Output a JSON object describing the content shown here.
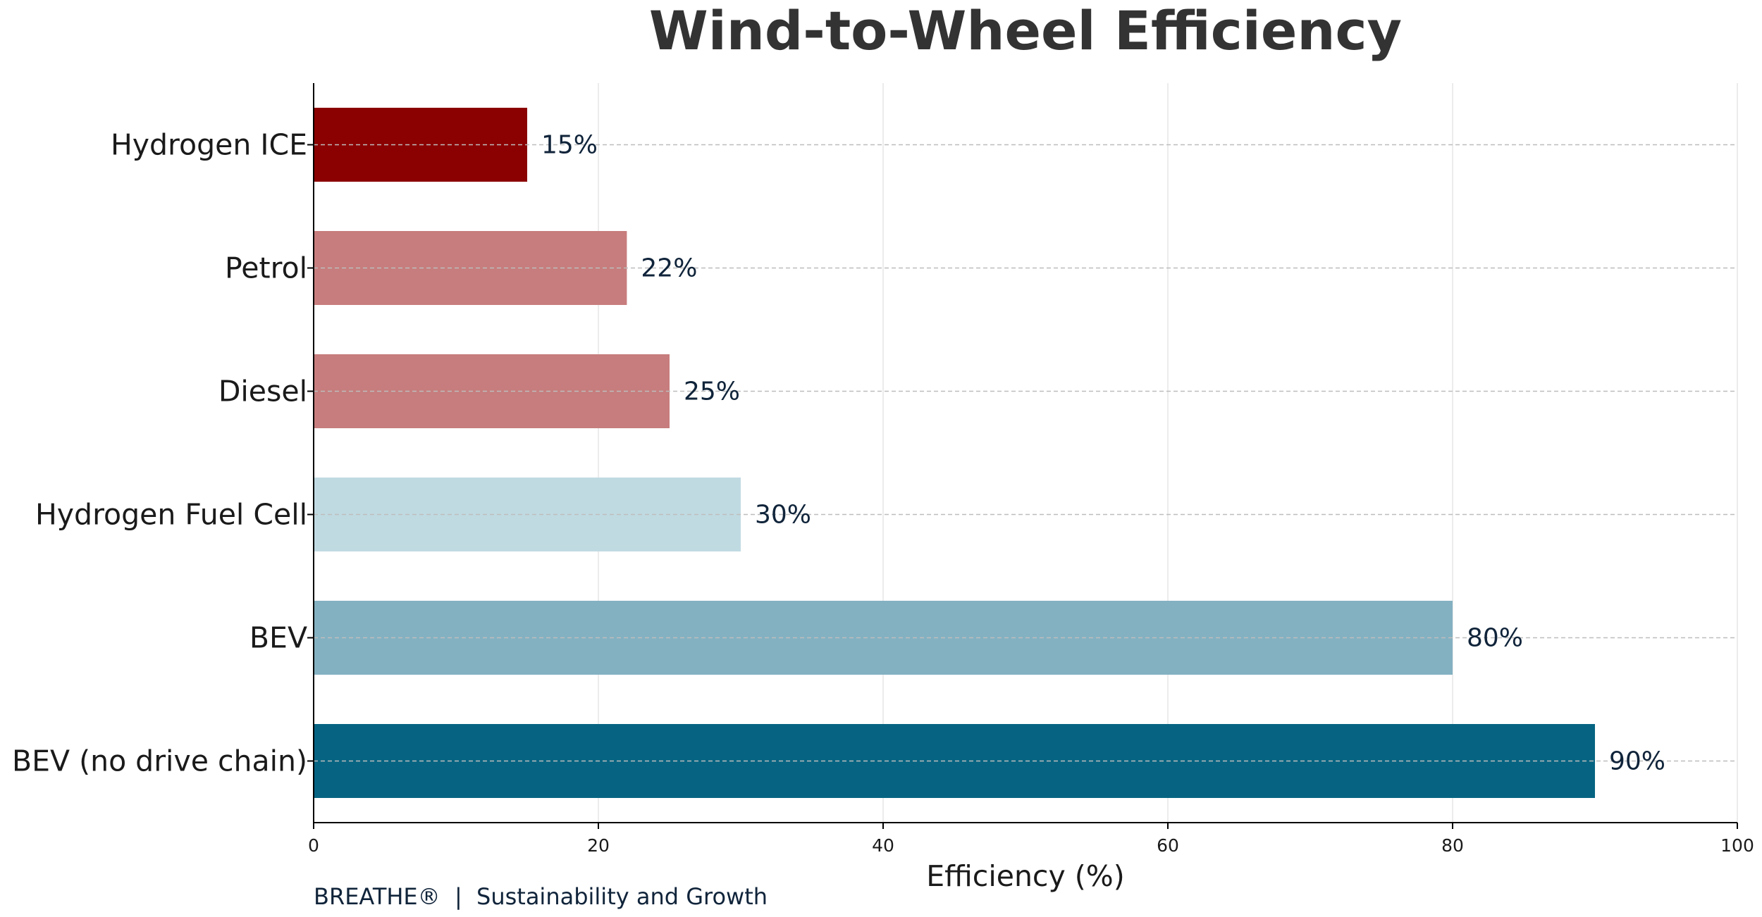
{
  "chart_data": {
    "type": "bar",
    "orientation": "horizontal",
    "title": "Wind-to-Wheel Efficiency",
    "xlabel": "Efficiency (%)",
    "ylabel": "",
    "xlim": [
      0,
      100
    ],
    "xticks": [
      "0",
      "20",
      "40",
      "60",
      "80",
      "100"
    ],
    "categories": [
      "Hydrogen ICE",
      "Petrol",
      "Diesel",
      "Hydrogen Fuel Cell",
      "BEV",
      "BEV (no drive chain)"
    ],
    "values": [
      15,
      22,
      25,
      30,
      80,
      90
    ],
    "value_labels": [
      "15%",
      "22%",
      "25%",
      "30%",
      "80%",
      "90%"
    ],
    "colors": [
      "#8b0000",
      "#c77d7d",
      "#c77d7d",
      "#c0dae2",
      "#83b1c1",
      "#066482"
    ],
    "grid": true
  },
  "footer": {
    "brand": "BREATHE®",
    "separator": "|",
    "tagline": "Sustainability and Growth"
  }
}
